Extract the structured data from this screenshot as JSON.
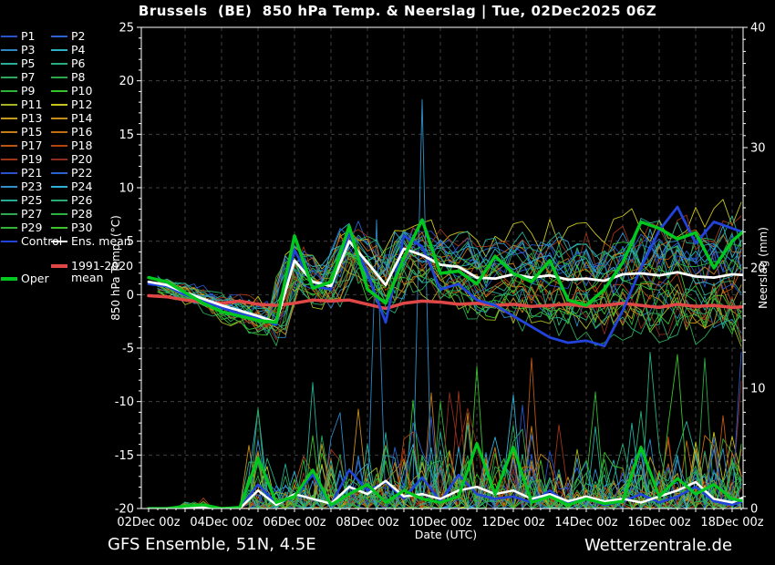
{
  "title": "Brussels  (BE)  850 hPa Temp. & Neerslag | Tue, 02Dec2025 06Z",
  "footer": {
    "left": "GFS Ensemble, 51N, 4.5E",
    "right": "Wetterzentrale.de"
  },
  "axes": {
    "temp": {
      "label": "850 hPa Temp. (°C)",
      "ticks": [
        25,
        20,
        15,
        10,
        5,
        0,
        -5,
        -10,
        -15,
        -20
      ],
      "min": -20,
      "max": 25
    },
    "precip": {
      "label": "Neerslag (mm)",
      "ticks": [
        40,
        30,
        20,
        10,
        0
      ],
      "min": 0,
      "max": 40
    },
    "x": {
      "label": "Date (UTC)",
      "tick_labels": [
        "02Dec 00z",
        "04Dec 00z",
        "06Dec 00z",
        "08Dec 00z",
        "10Dec 00z",
        "12Dec 00z",
        "14Dec 00z",
        "16Dec 00z",
        "18Dec 00z"
      ],
      "days_total": 16.5,
      "grid_step_days": 1,
      "label_step_days": 2
    }
  },
  "legend": {
    "members": [
      {
        "label": "P1",
        "color": "#2a52cc"
      },
      {
        "label": "P2",
        "color": "#2a62d0"
      },
      {
        "label": "P3",
        "color": "#2f86c4"
      },
      {
        "label": "P4",
        "color": "#2fb0c4"
      },
      {
        "label": "P5",
        "color": "#27ae9c"
      },
      {
        "label": "P6",
        "color": "#28ae7e"
      },
      {
        "label": "P7",
        "color": "#2aa85e"
      },
      {
        "label": "P8",
        "color": "#2aa84a"
      },
      {
        "label": "P9",
        "color": "#2cb434"
      },
      {
        "label": "P10",
        "color": "#38c22c"
      },
      {
        "label": "P11",
        "color": "#a6b424"
      },
      {
        "label": "P12",
        "color": "#c8c41e"
      },
      {
        "label": "P13",
        "color": "#c49a1a"
      },
      {
        "label": "P14",
        "color": "#c68c18"
      },
      {
        "label": "P15",
        "color": "#c87c16"
      },
      {
        "label": "P16",
        "color": "#c26c14"
      },
      {
        "label": "P17",
        "color": "#bc5612"
      },
      {
        "label": "P18",
        "color": "#b44410"
      },
      {
        "label": "P19",
        "color": "#a03418"
      },
      {
        "label": "P20",
        "color": "#8e2c1e"
      },
      {
        "label": "P21",
        "color": "#2a52cc"
      },
      {
        "label": "P22",
        "color": "#2a62d0"
      },
      {
        "label": "P23",
        "color": "#2f90ca"
      },
      {
        "label": "P24",
        "color": "#2fb0d4"
      },
      {
        "label": "P25",
        "color": "#26ac94"
      },
      {
        "label": "P26",
        "color": "#28ac72"
      },
      {
        "label": "P27",
        "color": "#2aa854"
      },
      {
        "label": "P28",
        "color": "#2cb23e"
      },
      {
        "label": "P29",
        "color": "#32b430"
      },
      {
        "label": "P30",
        "color": "#3cc22a"
      }
    ],
    "special": [
      {
        "lines": [
          "Control"
        ],
        "color": "#2244dd",
        "thickness": 2
      },
      {
        "lines": [
          "Ens. mean"
        ],
        "color": "#ffffff",
        "thickness": 2
      },
      {
        "lines": [
          "1991-2020",
          "mean"
        ],
        "color": "#e04848",
        "thickness": 4
      },
      {
        "lines": [
          "Oper"
        ],
        "color": "#00c81e",
        "thickness": 4
      }
    ]
  },
  "chart_data": {
    "type": "line",
    "title": "Brussels (BE) 850 hPa Temp. & Neerslag | Tue, 02Dec2025 06Z",
    "x_axis_days_from_02Dec00z": [
      0,
      0.5,
      1,
      1.5,
      2,
      2.5,
      3,
      3.5,
      4,
      4.5,
      5,
      5.5,
      6,
      6.5,
      7,
      7.5,
      8,
      8.5,
      9,
      9.5,
      10,
      10.5,
      11,
      11.5,
      12,
      12.5,
      13,
      13.5,
      14,
      14.5,
      15,
      15.5,
      16,
      16.5
    ],
    "temp_axis_range_C": [
      -20,
      25
    ],
    "precip_axis_range_mm": [
      0,
      40
    ],
    "grid": "dashed, every 1 day vertical, every 5 C horizontal",
    "legend_position": "left",
    "series": [
      {
        "name": "Ens. mean",
        "axis": "temp",
        "color": "#ffffff",
        "width": 2.8,
        "values": [
          1.2,
          0.9,
          0.2,
          -0.4,
          -1.0,
          -1.5,
          -2.0,
          -2.6,
          3.2,
          1.2,
          0.8,
          5.0,
          3.0,
          0.9,
          4.3,
          3.7,
          2.8,
          2.6,
          1.6,
          1.5,
          1.9,
          1.6,
          1.8,
          1.4,
          1.5,
          1.3,
          1.9,
          2.0,
          1.8,
          2.1,
          1.7,
          1.6,
          1.9,
          1.8
        ]
      },
      {
        "name": "Control",
        "axis": "temp",
        "color": "#2244dd",
        "width": 2.8,
        "values": [
          1.0,
          0.8,
          0.0,
          -0.6,
          -1.2,
          -1.8,
          -2.2,
          -2.8,
          4.2,
          0.8,
          0.5,
          5.8,
          2.0,
          -2.6,
          5.5,
          4.5,
          0.5,
          1.0,
          -0.5,
          -1.0,
          -2.0,
          -3.0,
          -4.0,
          -4.5,
          -4.3,
          -4.8,
          -1.5,
          2.5,
          6.0,
          8.2,
          4.8,
          6.8,
          6.2,
          5.6
        ]
      },
      {
        "name": "Oper",
        "axis": "temp",
        "color": "#00c81e",
        "width": 3.5,
        "values": [
          1.6,
          1.2,
          0.2,
          -0.8,
          -1.6,
          -2.0,
          -2.4,
          -2.6,
          5.5,
          0.6,
          1.2,
          6.4,
          0.5,
          -0.8,
          3.5,
          7.0,
          2.0,
          2.2,
          1.0,
          3.6,
          2.0,
          1.2,
          3.2,
          -0.5,
          -1.0,
          0.5,
          3.0,
          6.8,
          6.2,
          5.2,
          5.8,
          2.5,
          5.0,
          6.5
        ]
      },
      {
        "name": "1991-2020 mean",
        "axis": "temp",
        "color": "#e04848",
        "width": 3.5,
        "values": [
          -0.1,
          -0.2,
          -0.5,
          -0.7,
          -0.8,
          -0.6,
          -0.9,
          -1.0,
          -0.8,
          -0.5,
          -0.6,
          -0.5,
          -0.9,
          -1.3,
          -0.8,
          -0.6,
          -0.7,
          -0.9,
          -0.8,
          -1.0,
          -0.9,
          -1.1,
          -1.0,
          -0.9,
          -1.1,
          -1.0,
          -0.8,
          -1.0,
          -1.2,
          -0.9,
          -1.1,
          -1.0,
          -1.2,
          -1.1
        ]
      },
      {
        "name": "Ens. mean precip",
        "axis": "precip",
        "color": "#ffffff",
        "width": 2.5,
        "values": [
          0,
          0,
          0.1,
          0.1,
          0,
          0,
          1.5,
          0.3,
          1.2,
          0.8,
          0.4,
          1.8,
          1.2,
          2.3,
          1.0,
          1.2,
          0.8,
          1.5,
          1.8,
          1.2,
          1.5,
          0.8,
          1.2,
          0.6,
          1.0,
          0.6,
          0.8,
          0.5,
          1.0,
          1.5,
          2.2,
          0.8,
          0.5,
          1.2
        ]
      },
      {
        "name": "Control precip",
        "axis": "precip",
        "color": "#2244dd",
        "width": 2.5,
        "values": [
          0,
          0,
          0.1,
          0.2,
          0,
          0,
          2.0,
          0.4,
          1.0,
          2.8,
          0.3,
          3.2,
          1.5,
          2.2,
          0.8,
          2.6,
          0.6,
          2.8,
          1.2,
          0.8,
          1.0,
          0.5,
          1.5,
          0.4,
          0.8,
          0.3,
          0.6,
          1.2,
          0.5,
          1.0,
          1.8,
          0.6,
          0.3,
          0.8
        ]
      },
      {
        "name": "Oper precip",
        "axis": "precip",
        "color": "#00c81e",
        "width": 3.2,
        "values": [
          0,
          0,
          0.2,
          0.3,
          0,
          0.1,
          4.2,
          0.5,
          1.0,
          3.2,
          0.3,
          1.2,
          2.0,
          0.5,
          1.5,
          0.8,
          0.5,
          1.0,
          5.4,
          1.2,
          5.1,
          0.5,
          1.0,
          0.3,
          0.8,
          0.4,
          0.6,
          5.1,
          1.0,
          2.5,
          1.2,
          2.0,
          0.8,
          0.5
        ]
      }
    ],
    "ensemble_members": {
      "note": "30 perturbation members (P1-P30) shown as thin spaghetti lines around the ensemble mean; spread grows from about ±1 C on 02Dec to about -5..+10 C by 18Dec. Precipitation members are 6-hourly spikes, mostly 0-6 mm, occasionally 10-13 mm, with two extreme blue spikes near 08-10Dec.",
      "count": 30,
      "sample_step_days": 0.25,
      "temp_bias_max": 1.1,
      "temp_bias_growth_per_day": 0.3,
      "temp_jitter_base": 0.5,
      "temp_jitter_growth_per_day": 0.11,
      "precip_envelope_mm": [
        [
          0,
          0
        ],
        [
          0.9,
          0
        ],
        [
          1.0,
          0.35
        ],
        [
          1.6,
          0.35
        ],
        [
          1.7,
          0
        ],
        [
          2.5,
          0
        ],
        [
          2.7,
          2.3
        ],
        [
          3.6,
          2.4
        ],
        [
          3.8,
          1.6
        ],
        [
          4.9,
          2.3
        ],
        [
          5.2,
          2.6
        ],
        [
          8.0,
          3.0
        ],
        [
          8.2,
          3.4
        ],
        [
          10.5,
          3.1
        ],
        [
          10.7,
          1.7
        ],
        [
          13.0,
          1.9
        ],
        [
          13.2,
          2.7
        ],
        [
          16.5,
          2.5
        ]
      ],
      "precip_zero_prob": 0.35,
      "precip_scale": 0.7,
      "precip_clamp_mm": 12.5,
      "forced_precip_spikes": [
        {
          "member_index": 2,
          "t_days": 6.25,
          "mm": 24
        },
        {
          "member_index": 22,
          "t_days": 7.5,
          "mm": 34
        },
        {
          "member_index": 9,
          "t_days": 9.0,
          "mm": 11.8
        },
        {
          "member_index": 5,
          "t_days": 13.75,
          "mm": 13
        },
        {
          "member_index": 7,
          "t_days": 15.25,
          "mm": 12.5
        },
        {
          "member_index": 29,
          "t_days": 14.5,
          "mm": 12.8
        },
        {
          "member_index": 21,
          "t_days": 16.25,
          "mm": 13
        }
      ]
    }
  }
}
